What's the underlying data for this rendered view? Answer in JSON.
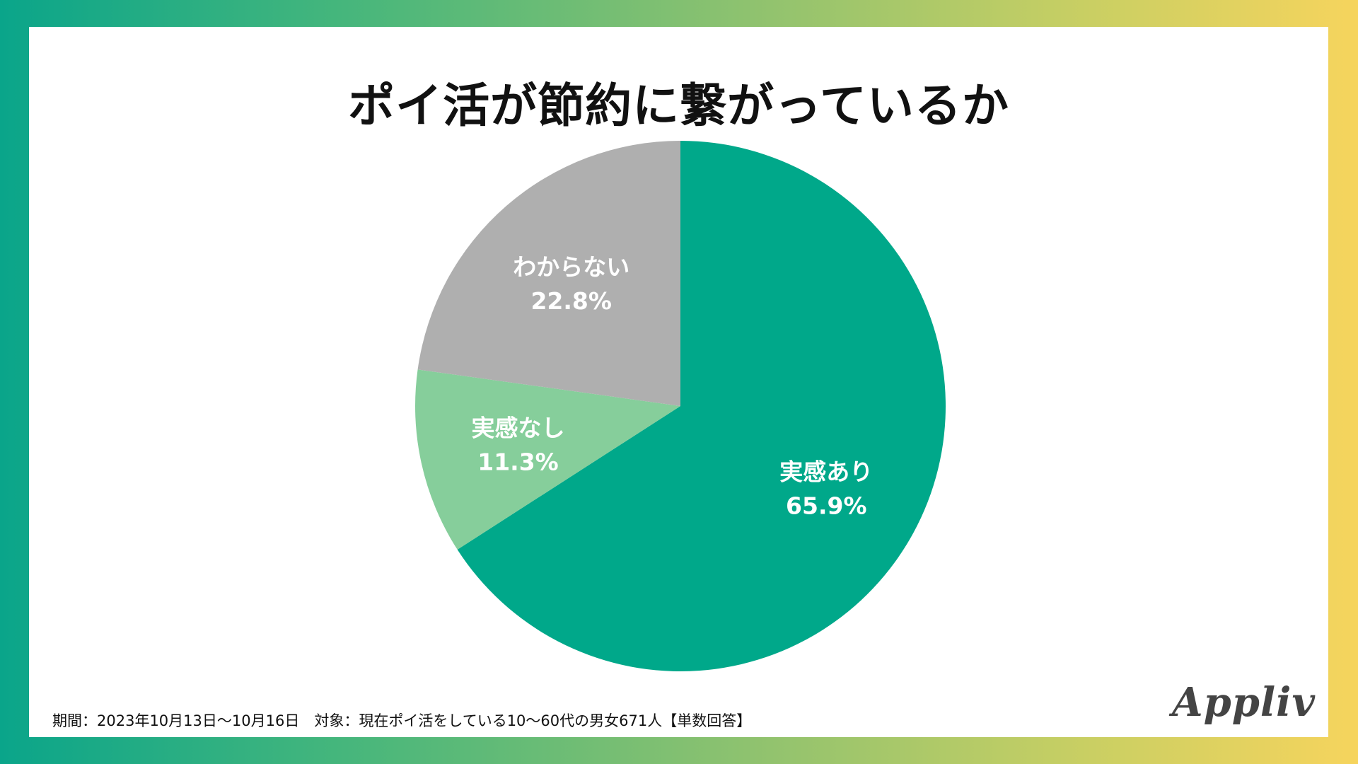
{
  "title": "ポイ活が節約に繋がっているか",
  "footnote": "期間：2023年10月13日〜10月16日　対象：現在ポイ活をしている10〜60代の男女671人【単数回答】",
  "logo_text": "Appliv",
  "colors": {
    "frame_gradient": [
      "#0aa58a",
      "#45b67c",
      "#8ec26f",
      "#c9cf63",
      "#f6d45d"
    ],
    "panel": "#ffffff",
    "label_text": "#ffffff"
  },
  "chart_data": {
    "type": "pie",
    "title": "ポイ活が節約に繋がっているか",
    "start": "top",
    "direction": "clockwise",
    "slices": [
      {
        "label": "実感あり",
        "value": 65.9,
        "value_label": "65.9%",
        "color": "#00a88a"
      },
      {
        "label": "実感なし",
        "value": 11.3,
        "value_label": "11.3%",
        "color": "#86ce9b"
      },
      {
        "label": "わからない",
        "value": 22.8,
        "value_label": "22.8%",
        "color": "#afafaf"
      }
    ]
  }
}
